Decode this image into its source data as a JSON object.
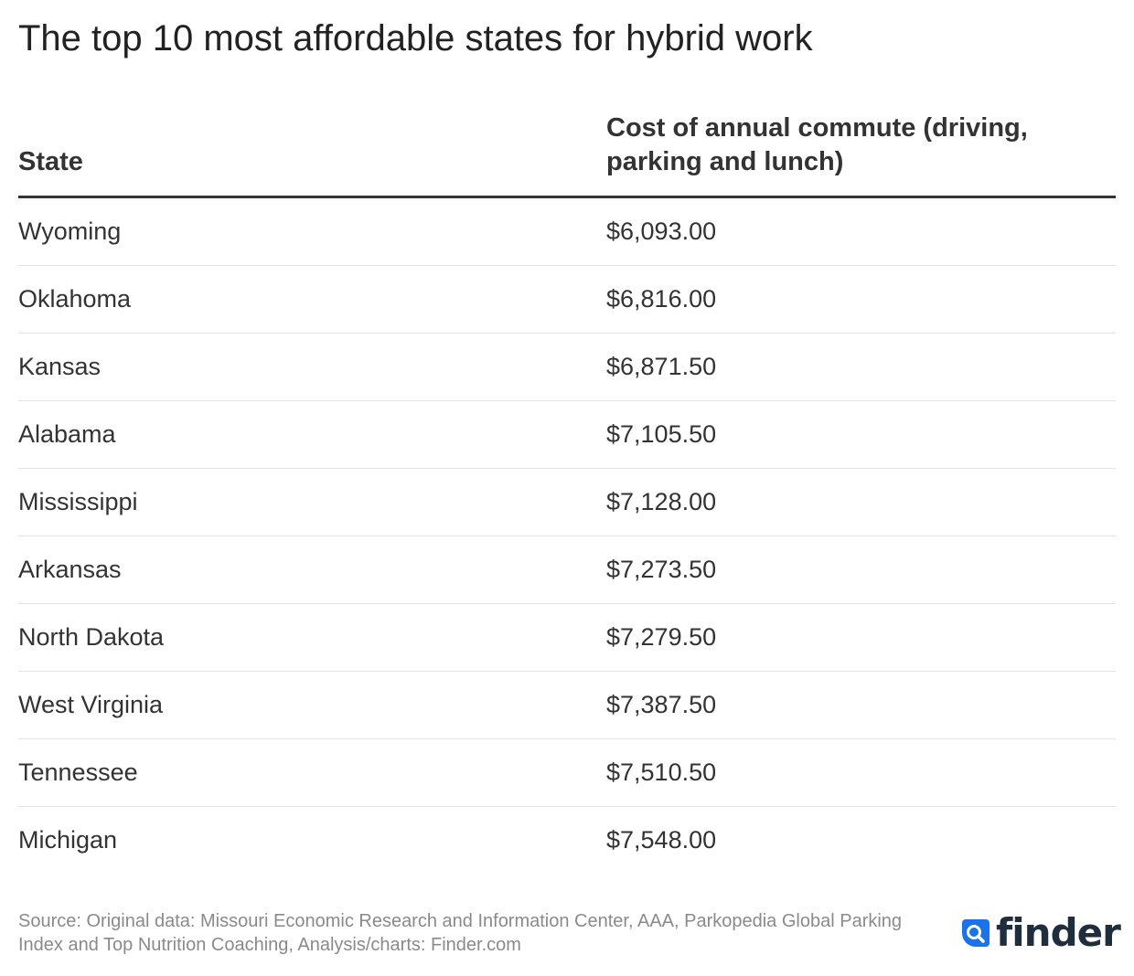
{
  "chart_data": {
    "type": "table",
    "title": "The top 10 most affordable states for hybrid work",
    "columns": [
      "State",
      "Cost of annual commute (driving, parking and lunch)"
    ],
    "rows": [
      {
        "state": "Wyoming",
        "cost": "$6,093.00"
      },
      {
        "state": "Oklahoma",
        "cost": "$6,816.00"
      },
      {
        "state": "Kansas",
        "cost": "$6,871.50"
      },
      {
        "state": "Alabama",
        "cost": "$7,105.50"
      },
      {
        "state": "Mississippi",
        "cost": "$7,128.00"
      },
      {
        "state": "Arkansas",
        "cost": "$7,273.50"
      },
      {
        "state": "North Dakota",
        "cost": "$7,279.50"
      },
      {
        "state": "West Virginia",
        "cost": "$7,387.50"
      },
      {
        "state": "Tennessee",
        "cost": "$7,510.50"
      },
      {
        "state": "Michigan",
        "cost": "$7,548.00"
      }
    ],
    "source": "Source: Original data: Missouri Economic Research and Information Center, AAA, Parkopedia Global Parking Index and Top Nutrition Coaching, Analysis/charts: Finder.com"
  },
  "brand": {
    "logo_text": "finder",
    "logo_icon": "magnifier-icon",
    "accent_color": "#1a73e8",
    "text_color": "#1f2d3d"
  }
}
